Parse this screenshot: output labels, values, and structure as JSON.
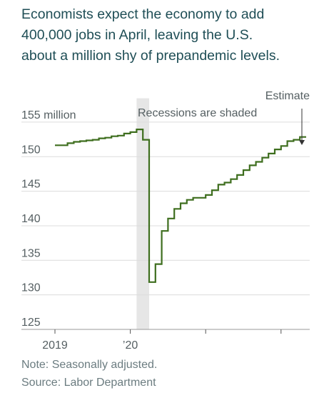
{
  "headline_lines": [
    "Economists expect the economy to add",
    "400,000 jobs in April, leaving the U.S.",
    "about a million shy of prepandemic levels."
  ],
  "notes": {
    "note": "Note: Seasonally adjusted.",
    "source": "Source: Labor Department"
  },
  "chart_data": {
    "type": "line",
    "y_unit_label": "155 million",
    "annotations": {
      "recession": "Recessions are shaded",
      "estimate": "Estimate"
    },
    "ylim": [
      125,
      157
    ],
    "y_ticks": [
      125,
      130,
      135,
      140,
      145,
      150,
      155
    ],
    "y_tick_labels": [
      "125",
      "130",
      "135",
      "140",
      "145",
      "150",
      "155"
    ],
    "x_ticks": [
      "2019-01",
      "2020-01",
      "2021-01",
      "2022-01"
    ],
    "x_tick_labels": [
      "2019",
      "’20",
      "",
      ""
    ],
    "recession_period": [
      "2020-02",
      "2020-04"
    ],
    "line_color": "#3e6e1e",
    "shade_color": "#e6e6e6",
    "series": [
      {
        "style": "step",
        "x": [
          "2019-01",
          "2019-02",
          "2019-03",
          "2019-04",
          "2019-05",
          "2019-06",
          "2019-07",
          "2019-08",
          "2019-09",
          "2019-10",
          "2019-11",
          "2019-12",
          "2020-01",
          "2020-02",
          "2020-03",
          "2020-04",
          "2020-05",
          "2020-06",
          "2020-07",
          "2020-08",
          "2020-09",
          "2020-10",
          "2020-11",
          "2020-12",
          "2021-01",
          "2021-02",
          "2021-03",
          "2021-04",
          "2021-05",
          "2021-06",
          "2021-07",
          "2021-08",
          "2021-09",
          "2021-10",
          "2021-11",
          "2021-12",
          "2022-01",
          "2022-02",
          "2022-03",
          "2022-04"
        ],
        "y": [
          150.2,
          150.2,
          150.5,
          150.7,
          150.8,
          150.9,
          151.0,
          151.2,
          151.3,
          151.5,
          151.6,
          151.9,
          152.1,
          152.5,
          151.0,
          130.4,
          133.0,
          137.8,
          139.6,
          141.0,
          141.8,
          142.3,
          142.6,
          142.6,
          143.0,
          143.7,
          144.5,
          144.8,
          145.3,
          145.9,
          146.6,
          147.3,
          147.8,
          148.4,
          149.0,
          149.6,
          150.1,
          150.8,
          151.0,
          151.4
        ]
      }
    ]
  }
}
